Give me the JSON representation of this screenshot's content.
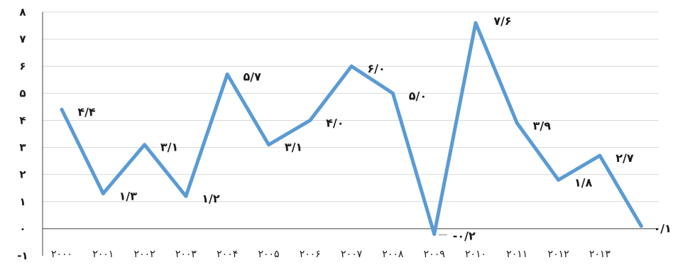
{
  "chart_data": {
    "type": "line",
    "title": "",
    "xlabel": "",
    "ylabel": "",
    "ylim": [
      -1,
      8
    ],
    "grid": true,
    "legend": "none",
    "y_ticks": [
      "-۱",
      "۰",
      "۱",
      "۲",
      "۳",
      "۴",
      "۵",
      "۶",
      "۷",
      "۸"
    ],
    "categories": [
      "۲۰۰۰",
      "۲۰۰۱",
      "۲۰۰۲",
      "۲۰۰۳",
      "۲۰۰۴",
      "۲۰۰۵",
      "۲۰۰۶",
      "۲۰۰۷",
      "۲۰۰۸",
      "۲۰۰۹",
      "۲۰۱۰",
      "۲۰۱۱",
      "۲۰۱۲",
      "۲۰۱۳",
      ""
    ],
    "series": [
      {
        "values": [
          4.4,
          1.3,
          3.1,
          1.2,
          5.7,
          3.1,
          4.0,
          6.0,
          5.0,
          -0.2,
          7.6,
          3.9,
          1.8,
          2.7,
          0.1
        ],
        "labels": [
          "۴/۴",
          "۱/۳",
          "۳/۱",
          "۱/۲",
          "۵/۷",
          "۳/۱",
          "۴/۰",
          "۶/۰",
          "۵/۰",
          "-۰/۲",
          "۷/۶",
          "۳/۹",
          "۱/۸",
          "۲/۷",
          "۰/۱"
        ],
        "color": "#5b9bd5"
      }
    ]
  }
}
